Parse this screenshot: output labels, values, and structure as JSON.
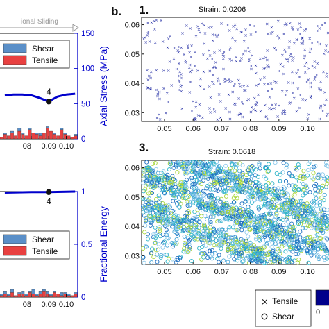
{
  "panel_label": "b.",
  "sliding_label": "ional Sliding",
  "colors": {
    "axis_blue": "#0000cc",
    "shear_bar": "#5a8fc8",
    "tensile_bar": "#e84040",
    "scatter_sparse": "#2b35a8",
    "scatter_dense": [
      "#49a6d8",
      "#2fb5c8",
      "#8cc9ec",
      "#a8d63a",
      "#1f6fc0"
    ]
  },
  "chart_data": [
    {
      "type": "line",
      "id": "top-left",
      "ylabel": "Axial Stress (MPa)",
      "yticks": [
        "150",
        "100",
        "50",
        "0"
      ],
      "ytick_values": [
        150,
        100,
        50,
        0
      ],
      "ylim": [
        0,
        150
      ],
      "xticks": [
        "08",
        "0.09",
        "0.10"
      ],
      "xtick_values": [
        0.08,
        0.09,
        0.1
      ],
      "x": [
        0.065,
        0.07,
        0.075,
        0.08,
        0.085,
        0.088,
        0.09,
        0.092,
        0.095,
        0.1,
        0.105
      ],
      "y": [
        62,
        63,
        63,
        62,
        58,
        55,
        53,
        56,
        60,
        63,
        64
      ],
      "marker": {
        "x": 0.09,
        "y": 53,
        "label": "4"
      },
      "legend": [
        "Shear",
        "Tensile"
      ],
      "histogram": {
        "tensile": [
          1,
          3,
          2,
          4,
          2,
          5,
          3,
          2,
          6,
          4,
          3,
          2,
          4,
          7,
          5,
          3,
          2,
          6,
          3,
          2,
          1,
          2
        ],
        "shear": [
          0,
          1,
          0,
          1,
          0,
          2,
          1,
          0,
          1,
          0,
          1,
          2,
          0,
          1,
          0,
          1,
          0,
          1,
          1,
          0,
          0,
          1
        ]
      }
    },
    {
      "type": "line",
      "id": "bottom-left",
      "ylabel": "Fractional Energy",
      "yticks": [
        "1",
        "0.5",
        "0"
      ],
      "ytick_values": [
        1,
        0.5,
        0
      ],
      "ylim": [
        0,
        1
      ],
      "xticks": [
        "08",
        "0.09",
        "0.10"
      ],
      "xtick_values": [
        0.08,
        0.09,
        0.1
      ],
      "x": [
        0.065,
        0.08,
        0.09,
        0.1,
        0.105
      ],
      "y": [
        0.99,
        0.995,
        0.995,
        0.998,
        1.0
      ],
      "marker": {
        "x": 0.09,
        "y": 0.995,
        "label": "4"
      },
      "legend": [
        "Shear",
        "Tensile"
      ],
      "histogram": {
        "tensile": [
          1,
          2,
          1,
          3,
          1,
          2,
          2,
          1,
          3,
          2,
          1,
          2,
          4,
          2,
          1,
          3,
          2,
          1,
          2,
          1,
          1,
          2
        ],
        "shear": [
          1,
          2,
          1,
          2,
          0,
          1,
          2,
          1,
          1,
          3,
          1,
          2,
          1,
          2,
          1,
          1,
          0,
          2,
          1,
          1,
          0,
          1
        ]
      }
    },
    {
      "type": "scatter",
      "id": "b1",
      "panel": "1.",
      "title": "Strain: 0.0206",
      "xticks": [
        "0.05",
        "0.06",
        "0.07",
        "0.08",
        "0.09",
        "0.10"
      ],
      "yticks": [
        "0.06",
        "0.05",
        "0.04",
        "0.03"
      ],
      "xlim": [
        0.042,
        0.108
      ],
      "ylim": [
        0.027,
        0.0625
      ],
      "n_points": 380,
      "marker": "x"
    },
    {
      "type": "scatter",
      "id": "b3",
      "panel": "3.",
      "title": "Strain: 0.0618",
      "xticks": [
        "0.05",
        "0.06",
        "0.07",
        "0.08",
        "0.09",
        "0.10"
      ],
      "yticks": [
        "0.06",
        "0.05",
        "0.04",
        "0.03"
      ],
      "xlim": [
        0.042,
        0.108
      ],
      "ylim": [
        0.027,
        0.0625
      ],
      "n_points": 2600,
      "marker": "o",
      "bands": "diagonal shear bands"
    }
  ],
  "bottom_legend": {
    "tensile": "Tensile",
    "shear": "Shear",
    "colorbar_min": "0"
  }
}
